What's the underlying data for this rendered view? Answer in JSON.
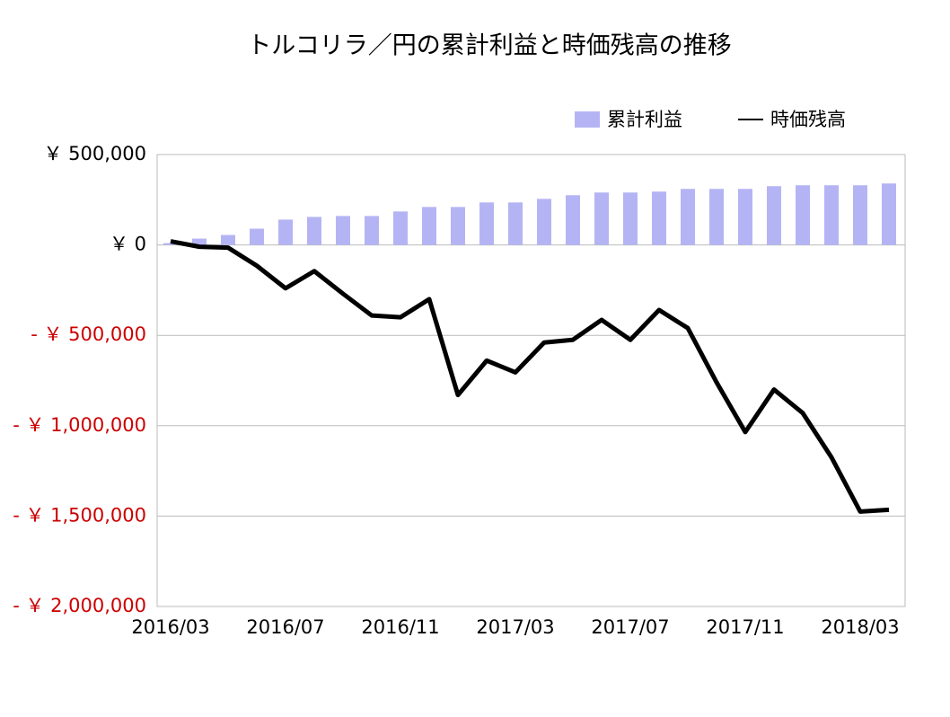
{
  "chart_data": {
    "type": "bar-line",
    "title": "トルコリラ／円の累計利益と時価残高の推移",
    "categories": [
      "2016/03",
      null,
      null,
      null,
      "2016/07",
      null,
      null,
      null,
      "2016/11",
      null,
      null,
      null,
      "2017/03",
      null,
      null,
      null,
      "2017/07",
      null,
      null,
      null,
      "2017/11",
      null,
      null,
      null,
      "2018/03",
      null
    ],
    "series": [
      {
        "name": "累計利益",
        "type": "bar",
        "color": "#b4b4f5",
        "values": [
          10000,
          35000,
          55000,
          90000,
          140000,
          155000,
          160000,
          160000,
          185000,
          210000,
          210000,
          235000,
          235000,
          255000,
          275000,
          290000,
          290000,
          295000,
          310000,
          310000,
          310000,
          325000,
          330000,
          330000,
          330000,
          340000
        ]
      },
      {
        "name": "時価残高",
        "type": "line",
        "color": "#000000",
        "values": [
          20000,
          -10000,
          -15000,
          -115000,
          -240000,
          -145000,
          -270000,
          -390000,
          -400000,
          -300000,
          -830000,
          -640000,
          -705000,
          -540000,
          -525000,
          -415000,
          -525000,
          -360000,
          -460000,
          -760000,
          -1035000,
          -800000,
          -930000,
          -1175000,
          -1475000,
          -1465000
        ]
      }
    ],
    "ylim": [
      -2000000,
      500000
    ],
    "yticks": [
      {
        "value": 500000,
        "label": "￥ 500,000"
      },
      {
        "value": 0,
        "label": "￥ 0"
      },
      {
        "value": -500000,
        "label": "- ￥ 500,000"
      },
      {
        "value": -1000000,
        "label": "- ￥ 1,000,000"
      },
      {
        "value": -1500000,
        "label": "- ￥ 1,500,000"
      },
      {
        "value": -2000000,
        "label": "- ￥ 2,000,000"
      }
    ],
    "negative_tick_color": "#cc0000",
    "grid": true,
    "legend": "top-right"
  }
}
